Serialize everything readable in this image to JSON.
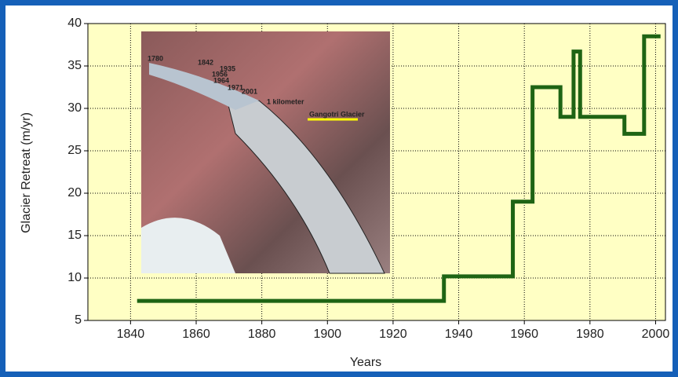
{
  "chart_data": {
    "type": "line",
    "step": true,
    "xlabel": "Years",
    "ylabel": "Glacier Retreat (m/yr)",
    "x": [
      1842,
      1935.5,
      1935.5,
      1956.5,
      1956.5,
      1962.5,
      1962.5,
      1971,
      1971,
      1975,
      1975,
      1977,
      1977,
      1990.5,
      1990.5,
      1996.5,
      1996.5,
      2001.5
    ],
    "series": [
      {
        "color": "#1e6414",
        "values": [
          7.3,
          7.3,
          10.2,
          10.2,
          19,
          19,
          32.5,
          32.5,
          29,
          29,
          36.7,
          36.7,
          29,
          29,
          27,
          27,
          38.5,
          38.5
        ]
      }
    ],
    "xlim": [
      1827,
      2003
    ],
    "ylim": [
      5,
      40
    ],
    "xticks": [
      1840,
      1860,
      1880,
      1900,
      1920,
      1940,
      1960,
      1980,
      2000
    ],
    "yticks": [
      5,
      10,
      15,
      20,
      25,
      30,
      35,
      40
    ],
    "grid": true,
    "background": "#ffffc4",
    "annotations": [
      "1780",
      "1842",
      "1935",
      "1956",
      "1964",
      "1971",
      "2001",
      "1 kilometer",
      "Gangotri Glacier"
    ]
  }
}
